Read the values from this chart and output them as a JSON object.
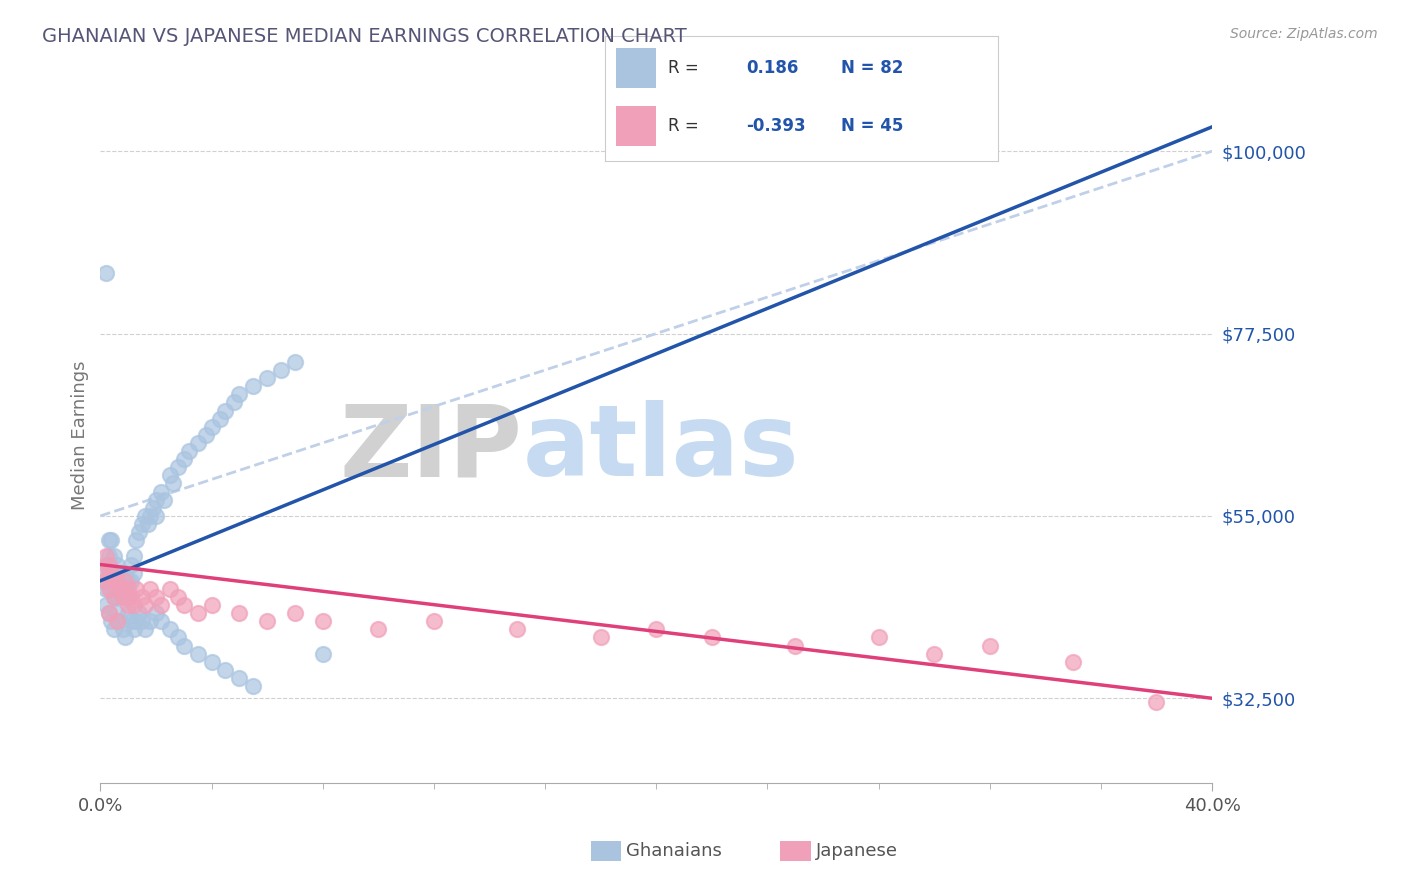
{
  "title": "GHANAIAN VS JAPANESE MEDIAN EARNINGS CORRELATION CHART",
  "title_color": "#4472c4",
  "source_text": "Source: ZipAtlas.com",
  "ylabel": "Median Earnings",
  "xlim": [
    0.0,
    0.4
  ],
  "ylim": [
    22000,
    108000
  ],
  "yticks": [
    32500,
    55000,
    77500,
    100000
  ],
  "ytick_labels": [
    "$32,500",
    "$55,000",
    "$77,500",
    "$100,000"
  ],
  "xtick_labels_ends": [
    "0.0%",
    "40.0%"
  ],
  "watermark_zip": "ZIP",
  "watermark_atlas": "atlas",
  "ghanaian_color": "#aac4e0",
  "japanese_color": "#f0a0b8",
  "ghanaian_line_color": "#2255aa",
  "japanese_line_color": "#e0407a",
  "trend_line_color": "#c0d0e8",
  "R_ghanaian": 0.186,
  "N_ghanaian": 82,
  "R_japanese": -0.393,
  "N_japanese": 45,
  "ghanaian_scatter_x": [
    0.001,
    0.002,
    0.002,
    0.003,
    0.003,
    0.003,
    0.004,
    0.004,
    0.004,
    0.005,
    0.005,
    0.005,
    0.006,
    0.006,
    0.006,
    0.007,
    0.007,
    0.008,
    0.008,
    0.009,
    0.009,
    0.01,
    0.01,
    0.011,
    0.011,
    0.012,
    0.012,
    0.013,
    0.014,
    0.015,
    0.016,
    0.017,
    0.018,
    0.019,
    0.02,
    0.02,
    0.022,
    0.023,
    0.025,
    0.026,
    0.028,
    0.03,
    0.032,
    0.035,
    0.038,
    0.04,
    0.043,
    0.045,
    0.048,
    0.05,
    0.055,
    0.06,
    0.065,
    0.07,
    0.002,
    0.003,
    0.004,
    0.005,
    0.006,
    0.007,
    0.008,
    0.009,
    0.01,
    0.011,
    0.012,
    0.013,
    0.014,
    0.015,
    0.016,
    0.018,
    0.02,
    0.022,
    0.025,
    0.028,
    0.03,
    0.035,
    0.04,
    0.045,
    0.05,
    0.055,
    0.002,
    0.08
  ],
  "ghanaian_scatter_y": [
    47000,
    49000,
    46000,
    52000,
    50000,
    48000,
    52000,
    48000,
    46000,
    50000,
    48000,
    45000,
    49000,
    47000,
    45000,
    48000,
    46000,
    47000,
    45000,
    48000,
    46000,
    47000,
    45000,
    49000,
    47000,
    50000,
    48000,
    52000,
    53000,
    54000,
    55000,
    54000,
    55000,
    56000,
    57000,
    55000,
    58000,
    57000,
    60000,
    59000,
    61000,
    62000,
    63000,
    64000,
    65000,
    66000,
    67000,
    68000,
    69000,
    70000,
    71000,
    72000,
    73000,
    74000,
    44000,
    43000,
    42000,
    41000,
    43000,
    42000,
    41000,
    40000,
    43000,
    42000,
    41000,
    42000,
    43000,
    42000,
    41000,
    42000,
    43000,
    42000,
    41000,
    40000,
    39000,
    38000,
    37000,
    36000,
    35000,
    34000,
    85000,
    38000
  ],
  "japanese_scatter_x": [
    0.001,
    0.002,
    0.002,
    0.003,
    0.003,
    0.004,
    0.005,
    0.005,
    0.006,
    0.007,
    0.008,
    0.009,
    0.01,
    0.011,
    0.012,
    0.013,
    0.015,
    0.016,
    0.018,
    0.02,
    0.022,
    0.025,
    0.028,
    0.03,
    0.035,
    0.04,
    0.05,
    0.06,
    0.07,
    0.08,
    0.1,
    0.12,
    0.15,
    0.18,
    0.2,
    0.22,
    0.25,
    0.28,
    0.3,
    0.32,
    0.35,
    0.003,
    0.006,
    0.01,
    0.38
  ],
  "japanese_scatter_y": [
    48000,
    50000,
    47000,
    49000,
    46000,
    48000,
    47000,
    45000,
    47000,
    46000,
    45000,
    47000,
    46000,
    45000,
    44000,
    46000,
    45000,
    44000,
    46000,
    45000,
    44000,
    46000,
    45000,
    44000,
    43000,
    44000,
    43000,
    42000,
    43000,
    42000,
    41000,
    42000,
    41000,
    40000,
    41000,
    40000,
    39000,
    40000,
    38000,
    39000,
    37000,
    43000,
    42000,
    44000,
    32000
  ]
}
